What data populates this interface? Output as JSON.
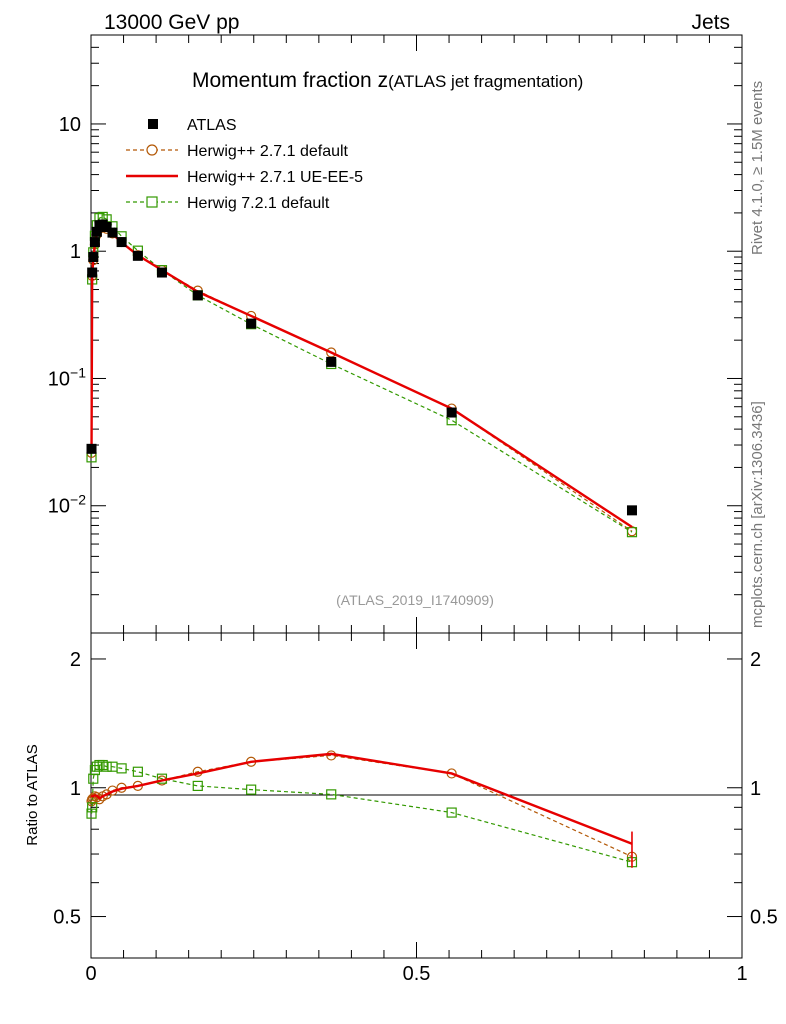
{
  "header": {
    "left": "13000 GeV pp",
    "right": "Jets"
  },
  "side": {
    "rivet": "Rivet 4.1.0, ≥ 1.5M events",
    "mcplots": "mcplots.cern.ch [arXiv:1306.3436]"
  },
  "plot_title": {
    "main": "Momentum fraction z",
    "sub": "(ATLAS jet fragmentation)"
  },
  "analysis_id": "(ATLAS_2019_I1740909)",
  "chart_data": [
    {
      "type": "line",
      "scale": "log",
      "xlim": [
        0,
        1
      ],
      "ylim": [
        0.001,
        50
      ],
      "yticks": [
        {
          "v": 10,
          "b": "10",
          "e": ""
        },
        {
          "v": 1,
          "b": "1",
          "e": ""
        },
        {
          "v": 0.1,
          "b": "10",
          "e": "−1"
        },
        {
          "v": 0.01,
          "b": "10",
          "e": "−2"
        }
      ],
      "series": [
        {
          "name": "ATLAS",
          "color": "#000000",
          "style": "points",
          "x": [
            0.0008,
            0.0018,
            0.0035,
            0.006,
            0.009,
            0.013,
            0.018,
            0.024,
            0.033,
            0.047,
            0.072,
            0.109,
            0.164,
            0.246,
            0.369,
            0.554,
            0.831
          ],
          "y": [
            0.028,
            0.68,
            0.9,
            1.18,
            1.42,
            1.6,
            1.62,
            1.55,
            1.4,
            1.18,
            0.92,
            0.68,
            0.45,
            0.27,
            0.135,
            0.054,
            0.0092
          ]
        },
        {
          "name": "Herwig++ 2.7.1 default",
          "color": "#b35806",
          "style": "dashed",
          "marker": "circle",
          "x": [
            0.0008,
            0.0018,
            0.0035,
            0.006,
            0.009,
            0.013,
            0.018,
            0.024,
            0.033,
            0.047,
            0.072,
            0.109,
            0.164,
            0.246,
            0.369,
            0.554,
            0.831
          ],
          "y": [
            0.026,
            0.64,
            0.85,
            1.13,
            1.35,
            1.5,
            1.55,
            1.5,
            1.38,
            1.18,
            0.93,
            0.71,
            0.49,
            0.31,
            0.16,
            0.058,
            0.0063
          ]
        },
        {
          "name": "Herwig++ 2.7.1 UE-EE-5",
          "color": "#e60000",
          "style": "solid",
          "x": [
            0.0008,
            0.0018,
            0.0035,
            0.006,
            0.009,
            0.013,
            0.018,
            0.024,
            0.033,
            0.047,
            0.072,
            0.109,
            0.164,
            0.246,
            0.369,
            0.554,
            0.831
          ],
          "y": [
            0.027,
            0.65,
            0.86,
            1.14,
            1.36,
            1.51,
            1.55,
            1.49,
            1.37,
            1.17,
            0.93,
            0.71,
            0.48,
            0.31,
            0.16,
            0.058,
            0.0068
          ]
        },
        {
          "name": "Herwig 7.2.1 default",
          "color": "#339900",
          "style": "dashed",
          "marker": "square",
          "x": [
            0.0008,
            0.0018,
            0.0035,
            0.006,
            0.009,
            0.013,
            0.018,
            0.024,
            0.033,
            0.047,
            0.072,
            0.109,
            0.164,
            0.246,
            0.369,
            0.554,
            0.831
          ],
          "y": [
            0.024,
            0.6,
            0.98,
            1.32,
            1.6,
            1.82,
            1.86,
            1.78,
            1.57,
            1.31,
            1.01,
            0.71,
            0.45,
            0.267,
            0.13,
            0.047,
            0.0062
          ]
        }
      ]
    },
    {
      "type": "line",
      "scale": "log",
      "ylabel": "Ratio to ATLAS",
      "xlim": [
        0,
        1
      ],
      "ylim": [
        0.4,
        2.3
      ],
      "yticks": [
        {
          "v": 2,
          "t": "2"
        },
        {
          "v": 1,
          "t": "1"
        },
        {
          "v": 0.5,
          "t": "0.5"
        }
      ],
      "xticks": [
        {
          "v": 0,
          "t": "0"
        },
        {
          "v": 0.5,
          "t": "0.5"
        },
        {
          "v": 1,
          "t": "1"
        }
      ],
      "series": [
        {
          "name": "Herwig++ 2.7.1 default",
          "color": "#b35806",
          "style": "dashed",
          "marker": "circle",
          "x": [
            0.0008,
            0.0018,
            0.0035,
            0.006,
            0.009,
            0.013,
            0.018,
            0.024,
            0.033,
            0.047,
            0.072,
            0.109,
            0.164,
            0.246,
            0.369,
            0.554,
            0.831
          ],
          "y": [
            0.93,
            0.94,
            0.945,
            0.955,
            0.95,
            0.94,
            0.955,
            0.965,
            0.985,
            1.0,
            1.01,
            1.04,
            1.09,
            1.15,
            1.19,
            1.08,
            0.69
          ]
        },
        {
          "name": "Herwig++ 2.7.1 UE-EE-5",
          "color": "#e60000",
          "style": "solid",
          "x": [
            0.0008,
            0.0018,
            0.0035,
            0.006,
            0.009,
            0.013,
            0.018,
            0.024,
            0.033,
            0.047,
            0.072,
            0.109,
            0.164,
            0.246,
            0.369,
            0.554,
            0.831
          ],
          "y": [
            0.96,
            0.955,
            0.955,
            0.96,
            0.958,
            0.945,
            0.955,
            0.965,
            0.98,
            0.995,
            1.01,
            1.04,
            1.08,
            1.15,
            1.2,
            1.08,
            0.74
          ]
        },
        {
          "name": "Herwig 7.2.1 default",
          "color": "#339900",
          "style": "dashed",
          "marker": "square",
          "x": [
            0.0008,
            0.0018,
            0.0035,
            0.006,
            0.009,
            0.013,
            0.018,
            0.024,
            0.033,
            0.047,
            0.072,
            0.109,
            0.164,
            0.246,
            0.369,
            0.554,
            0.831
          ],
          "y": [
            0.87,
            0.9,
            1.05,
            1.1,
            1.12,
            1.13,
            1.13,
            1.12,
            1.12,
            1.11,
            1.09,
            1.05,
            1.01,
            0.99,
            0.965,
            0.875,
            0.67
          ]
        }
      ]
    }
  ]
}
